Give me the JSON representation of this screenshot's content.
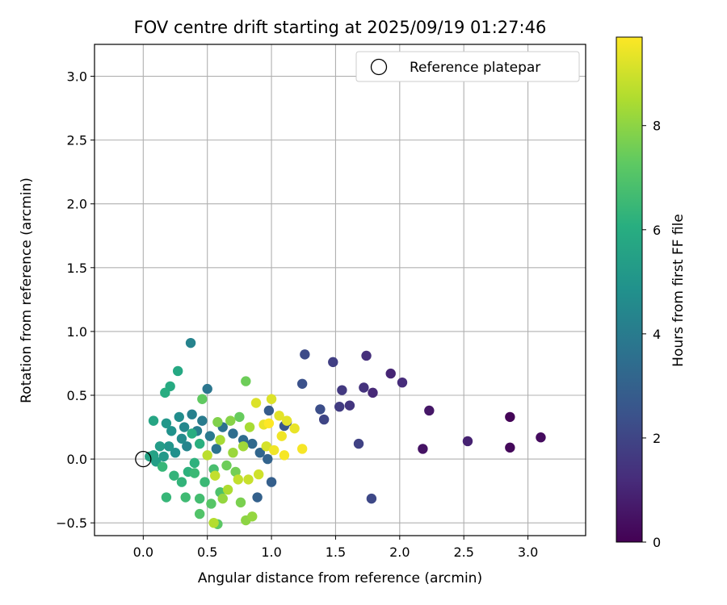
{
  "chart_data": {
    "type": "scatter",
    "title": "FOV centre drift starting at 2025/09/19 01:27:46",
    "xlabel": "Angular distance from reference (arcmin)",
    "ylabel": "Rotation from reference (arcmin)",
    "xlim": [
      -0.38,
      3.45
    ],
    "ylim": [
      -0.6,
      3.25
    ],
    "xticks": [
      0.0,
      0.5,
      1.0,
      1.5,
      2.0,
      2.5,
      3.0
    ],
    "xtick_labels": [
      "0.0",
      "0.5",
      "1.0",
      "1.5",
      "2.0",
      "2.5",
      "3.0"
    ],
    "yticks": [
      -0.5,
      0.0,
      0.5,
      1.0,
      1.5,
      2.0,
      2.5,
      3.0
    ],
    "ytick_labels": [
      "−0.5",
      "0.0",
      "0.5",
      "1.0",
      "1.5",
      "2.0",
      "2.5",
      "3.0"
    ],
    "grid": true,
    "legend": {
      "position": "upper-right",
      "entries": [
        "Reference platepar"
      ]
    },
    "reference_point": {
      "x": 0.0,
      "y": 0.0
    },
    "colorbar": {
      "label": "Hours from first FF file",
      "colormap": "viridis",
      "range": [
        0,
        9.7
      ],
      "ticks": [
        0,
        2,
        4,
        6,
        8
      ],
      "tick_labels": [
        "0",
        "2",
        "4",
        "6",
        "8"
      ]
    },
    "points": [
      {
        "x": 2.86,
        "y": 0.33,
        "h": 0.1
      },
      {
        "x": 2.86,
        "y": 0.09,
        "h": 0.2
      },
      {
        "x": 3.1,
        "y": 0.17,
        "h": 0.3
      },
      {
        "x": 2.18,
        "y": 0.08,
        "h": 0.5
      },
      {
        "x": 2.23,
        "y": 0.38,
        "h": 0.6
      },
      {
        "x": 2.53,
        "y": 0.14,
        "h": 0.9
      },
      {
        "x": 1.93,
        "y": 0.67,
        "h": 1.0
      },
      {
        "x": 1.79,
        "y": 0.52,
        "h": 1.1
      },
      {
        "x": 2.02,
        "y": 0.6,
        "h": 1.2
      },
      {
        "x": 1.74,
        "y": 0.81,
        "h": 1.3
      },
      {
        "x": 1.72,
        "y": 0.56,
        "h": 1.4
      },
      {
        "x": 1.61,
        "y": 0.42,
        "h": 1.5
      },
      {
        "x": 1.55,
        "y": 0.54,
        "h": 1.6
      },
      {
        "x": 1.53,
        "y": 0.41,
        "h": 1.7
      },
      {
        "x": 1.48,
        "y": 0.76,
        "h": 1.8
      },
      {
        "x": 1.68,
        "y": 0.12,
        "h": 1.9
      },
      {
        "x": 1.41,
        "y": 0.31,
        "h": 2.0
      },
      {
        "x": 1.78,
        "y": -0.31,
        "h": 2.1
      },
      {
        "x": 1.26,
        "y": 0.82,
        "h": 2.2
      },
      {
        "x": 1.38,
        "y": 0.39,
        "h": 2.3
      },
      {
        "x": 1.24,
        "y": 0.59,
        "h": 2.4
      },
      {
        "x": 1.12,
        "y": 0.29,
        "h": 2.5
      },
      {
        "x": 1.1,
        "y": 0.26,
        "h": 2.6
      },
      {
        "x": 0.98,
        "y": 0.38,
        "h": 2.8
      },
      {
        "x": 1.0,
        "y": -0.18,
        "h": 2.9
      },
      {
        "x": 0.89,
        "y": -0.3,
        "h": 3.0
      },
      {
        "x": 0.97,
        "y": 0.0,
        "h": 3.1
      },
      {
        "x": 0.91,
        "y": 0.05,
        "h": 3.2
      },
      {
        "x": 0.85,
        "y": 0.12,
        "h": 3.3
      },
      {
        "x": 0.78,
        "y": 0.15,
        "h": 3.4
      },
      {
        "x": 0.7,
        "y": 0.2,
        "h": 3.5
      },
      {
        "x": 0.62,
        "y": 0.25,
        "h": 3.6
      },
      {
        "x": 0.57,
        "y": 0.08,
        "h": 3.7
      },
      {
        "x": 0.5,
        "y": 0.55,
        "h": 3.8
      },
      {
        "x": 0.52,
        "y": 0.18,
        "h": 3.9
      },
      {
        "x": 0.46,
        "y": 0.3,
        "h": 4.0
      },
      {
        "x": 0.42,
        "y": 0.22,
        "h": 4.1
      },
      {
        "x": 0.38,
        "y": 0.35,
        "h": 4.2
      },
      {
        "x": 0.37,
        "y": 0.91,
        "h": 4.3
      },
      {
        "x": 0.34,
        "y": 0.1,
        "h": 4.4
      },
      {
        "x": 0.32,
        "y": 0.25,
        "h": 4.5
      },
      {
        "x": 0.3,
        "y": 0.16,
        "h": 4.6
      },
      {
        "x": 0.28,
        "y": 0.33,
        "h": 4.7
      },
      {
        "x": 0.25,
        "y": 0.05,
        "h": 4.8
      },
      {
        "x": 0.22,
        "y": 0.22,
        "h": 4.9
      },
      {
        "x": 0.2,
        "y": 0.1,
        "h": 5.0
      },
      {
        "x": 0.18,
        "y": 0.28,
        "h": 5.1
      },
      {
        "x": 0.16,
        "y": 0.02,
        "h": 5.2
      },
      {
        "x": 0.13,
        "y": 0.1,
        "h": 5.3
      },
      {
        "x": 0.1,
        "y": -0.02,
        "h": 5.4
      },
      {
        "x": 0.08,
        "y": 0.03,
        "h": 5.5
      },
      {
        "x": 0.05,
        "y": 0.02,
        "h": 5.6
      },
      {
        "x": 0.08,
        "y": 0.3,
        "h": 5.7
      },
      {
        "x": 0.27,
        "y": 0.69,
        "h": 5.8
      },
      {
        "x": 0.21,
        "y": 0.57,
        "h": 5.9
      },
      {
        "x": 0.17,
        "y": 0.52,
        "h": 6.0
      },
      {
        "x": 0.38,
        "y": 0.2,
        "h": 6.0
      },
      {
        "x": 0.44,
        "y": 0.12,
        "h": 6.1
      },
      {
        "x": 0.4,
        "y": -0.03,
        "h": 6.2
      },
      {
        "x": 0.35,
        "y": -0.1,
        "h": 6.2
      },
      {
        "x": 0.3,
        "y": -0.18,
        "h": 6.3
      },
      {
        "x": 0.24,
        "y": -0.13,
        "h": 6.3
      },
      {
        "x": 0.18,
        "y": -0.3,
        "h": 6.4
      },
      {
        "x": 0.15,
        "y": -0.06,
        "h": 6.4
      },
      {
        "x": 0.48,
        "y": -0.18,
        "h": 6.5
      },
      {
        "x": 0.4,
        "y": -0.11,
        "h": 6.5
      },
      {
        "x": 0.33,
        "y": -0.3,
        "h": 6.6
      },
      {
        "x": 0.44,
        "y": -0.31,
        "h": 6.7
      },
      {
        "x": 0.55,
        "y": -0.08,
        "h": 6.8
      },
      {
        "x": 0.6,
        "y": -0.26,
        "h": 6.9
      },
      {
        "x": 0.44,
        "y": -0.43,
        "h": 7.0
      },
      {
        "x": 0.53,
        "y": -0.35,
        "h": 7.1
      },
      {
        "x": 0.58,
        "y": -0.51,
        "h": 7.2
      },
      {
        "x": 0.46,
        "y": 0.47,
        "h": 7.3
      },
      {
        "x": 0.75,
        "y": 0.33,
        "h": 7.4
      },
      {
        "x": 0.8,
        "y": 0.61,
        "h": 7.5
      },
      {
        "x": 0.65,
        "y": -0.05,
        "h": 7.5
      },
      {
        "x": 0.72,
        "y": -0.1,
        "h": 7.6
      },
      {
        "x": 0.76,
        "y": -0.34,
        "h": 7.7
      },
      {
        "x": 0.58,
        "y": 0.29,
        "h": 7.8
      },
      {
        "x": 0.68,
        "y": 0.3,
        "h": 7.9
      },
      {
        "x": 0.8,
        "y": -0.48,
        "h": 8.0
      },
      {
        "x": 0.85,
        "y": -0.45,
        "h": 8.1
      },
      {
        "x": 0.62,
        "y": -0.31,
        "h": 8.1
      },
      {
        "x": 0.7,
        "y": 0.05,
        "h": 8.2
      },
      {
        "x": 0.78,
        "y": 0.1,
        "h": 8.3
      },
      {
        "x": 0.83,
        "y": 0.25,
        "h": 8.4
      },
      {
        "x": 0.6,
        "y": 0.15,
        "h": 8.4
      },
      {
        "x": 0.66,
        "y": -0.24,
        "h": 8.5
      },
      {
        "x": 0.55,
        "y": -0.5,
        "h": 8.6
      },
      {
        "x": 0.5,
        "y": 0.03,
        "h": 8.7
      },
      {
        "x": 0.56,
        "y": -0.13,
        "h": 8.8
      },
      {
        "x": 0.74,
        "y": -0.16,
        "h": 8.8
      },
      {
        "x": 0.82,
        "y": -0.16,
        "h": 8.9
      },
      {
        "x": 0.9,
        "y": -0.12,
        "h": 9.0
      },
      {
        "x": 0.96,
        "y": 0.1,
        "h": 9.1
      },
      {
        "x": 0.88,
        "y": 0.44,
        "h": 9.2
      },
      {
        "x": 1.0,
        "y": 0.47,
        "h": 9.2
      },
      {
        "x": 1.06,
        "y": 0.34,
        "h": 9.3
      },
      {
        "x": 1.12,
        "y": 0.3,
        "h": 9.3
      },
      {
        "x": 1.18,
        "y": 0.24,
        "h": 9.4
      },
      {
        "x": 0.94,
        "y": 0.27,
        "h": 9.4
      },
      {
        "x": 1.02,
        "y": 0.07,
        "h": 9.5
      },
      {
        "x": 1.08,
        "y": 0.18,
        "h": 9.5
      },
      {
        "x": 1.1,
        "y": 0.03,
        "h": 9.6
      },
      {
        "x": 1.24,
        "y": 0.08,
        "h": 9.6
      },
      {
        "x": 0.98,
        "y": 0.28,
        "h": 9.7
      }
    ]
  }
}
